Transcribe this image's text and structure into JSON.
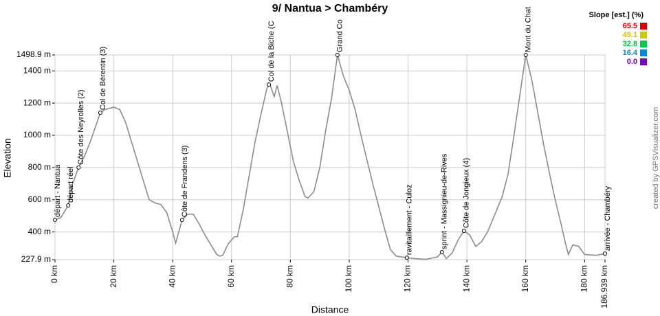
{
  "chart_data": {
    "type": "line",
    "title": "9/ Nantua > Chambéry",
    "x_label": "Distance",
    "y_label": "Elevation",
    "credit": "created by GPSVisualizer.com",
    "x": [
      0,
      2,
      4.5,
      6,
      8,
      10,
      12,
      15.4,
      17,
      20,
      22,
      24,
      26,
      28,
      30,
      32,
      34,
      36,
      38,
      40,
      41,
      43.2,
      45,
      47,
      49,
      51,
      53,
      55,
      56,
      57,
      59,
      61,
      62,
      64,
      66,
      68,
      70,
      72,
      73,
      74.5,
      75.5,
      77,
      79,
      81,
      83,
      85,
      86,
      88,
      90,
      92,
      94,
      96,
      98,
      100,
      102,
      104,
      106,
      108,
      110,
      112,
      114,
      116,
      119.6,
      122,
      126,
      130,
      131.5,
      133,
      135,
      137,
      139,
      141,
      143,
      145,
      147,
      150,
      152,
      154,
      156,
      158,
      160,
      162,
      164,
      166,
      168,
      170,
      172,
      173.5,
      174.5,
      176,
      178,
      180,
      184,
      186.939
    ],
    "series": [
      {
        "color": "#8a8a9a",
        "values": [
          475,
          490,
          565,
          700,
          800,
          870,
          960,
          1140,
          1160,
          1175,
          1160,
          1080,
          960,
          840,
          720,
          600,
          580,
          570,
          520,
          400,
          330,
          475,
          510,
          510,
          450,
          380,
          320,
          260,
          250,
          255,
          330,
          370,
          370,
          540,
          750,
          960,
          1130,
          1290,
          1320,
          1240,
          1310,
          1200,
          1020,
          840,
          720,
          620,
          610,
          650,
          800,
          1030,
          1230,
          1498.9,
          1370,
          1280,
          1160,
          1000,
          850,
          700,
          560,
          420,
          290,
          250,
          240,
          235,
          230,
          245,
          275,
          235,
          270,
          350,
          407,
          380,
          310,
          340,
          400,
          530,
          620,
          760,
          1000,
          1250,
          1498.9,
          1350,
          1150,
          950,
          770,
          600,
          450,
          330,
          260,
          320,
          310,
          260,
          255,
          266
        ]
      }
    ],
    "xlim": [
      0,
      186.939
    ],
    "ylim": [
      227.9,
      1498.9
    ],
    "xticks": [
      {
        "value": 0,
        "label": "0 km"
      },
      {
        "value": 20,
        "label": "20 km"
      },
      {
        "value": 40,
        "label": "40 km"
      },
      {
        "value": 60,
        "label": "60 km"
      },
      {
        "value": 80,
        "label": "80 km"
      },
      {
        "value": 100,
        "label": "100 km"
      },
      {
        "value": 120,
        "label": "120 km"
      },
      {
        "value": 140,
        "label": "140 km"
      },
      {
        "value": 160,
        "label": "160 km"
      },
      {
        "value": 180,
        "label": "180 km"
      },
      {
        "value": 186.939,
        "label": "186.939 km"
      }
    ],
    "yticks": [
      {
        "value": 227.9,
        "label": "227.9 m"
      },
      {
        "value": 400,
        "label": "400 m"
      },
      {
        "value": 600,
        "label": "600 m"
      },
      {
        "value": 800,
        "label": "800 m"
      },
      {
        "value": 1000,
        "label": "1000 m"
      },
      {
        "value": 1200,
        "label": "1200 m"
      },
      {
        "value": 1400,
        "label": "1400 m"
      },
      {
        "value": 1498.9,
        "label": "1498.9 m"
      }
    ],
    "grid": true,
    "annotations": [
      {
        "text": "départ - Nantua",
        "x": 0,
        "y": 475
      },
      {
        "text": "départ réel",
        "x": 4.5,
        "y": 565
      },
      {
        "text": "Côte des Neyrolles (2)",
        "x": 8,
        "y": 800
      },
      {
        "text": "Col de Bérentin (3)",
        "x": 15.4,
        "y": 1140
      },
      {
        "text": "Côte de Frandens (3)",
        "x": 43.2,
        "y": 475
      },
      {
        "text": "Col de la Biche (C",
        "x": 72.7,
        "y": 1315
      },
      {
        "text": "Grand Co",
        "x": 96,
        "y": 1498.9
      },
      {
        "text": "ravitaillement - Culoz",
        "x": 119.6,
        "y": 240
      },
      {
        "text": "sprint - Massignieu-de-Rives",
        "x": 131.5,
        "y": 275
      },
      {
        "text": "Côte de Jongieux (4)",
        "x": 139,
        "y": 407
      },
      {
        "text": "Mont du Chat",
        "x": 160,
        "y": 1498.9
      },
      {
        "text": "arrivée - Chambéry",
        "x": 186.939,
        "y": 266
      }
    ],
    "slope_legend": {
      "title": "Slope [est.] (%)",
      "items": [
        {
          "label": "65.5",
          "color": "#dd0000"
        },
        {
          "label": "49.1",
          "color": "#cccc00"
        },
        {
          "label": "32.8",
          "color": "#00cc44"
        },
        {
          "label": "16.4",
          "color": "#0088dd"
        },
        {
          "label": "0.0",
          "color": "#7700cc"
        }
      ]
    }
  }
}
